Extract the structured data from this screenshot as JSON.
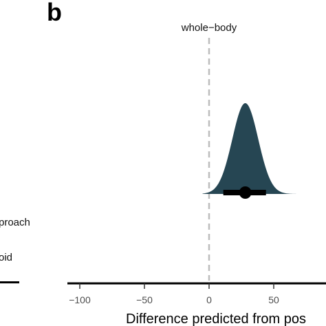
{
  "panel_label": "b",
  "left_panel_fragments": [
    "proach",
    "oid"
  ],
  "chart_data": {
    "type": "density",
    "reference_line": {
      "x": 0,
      "label": "whole−body",
      "style": "dashed",
      "color": "#bdbdbd"
    },
    "xlim": [
      -110,
      80
    ],
    "xticks": [
      -100,
      -50,
      0,
      50
    ],
    "tick_labels": [
      "−100",
      "−50",
      "0",
      "50"
    ],
    "xlabel": "Difference predicted from pos",
    "density": {
      "mean": 28,
      "sd": 10,
      "fill": "#264653"
    },
    "point_estimate": 28,
    "interval": [
      11,
      44
    ],
    "grid": false
  }
}
